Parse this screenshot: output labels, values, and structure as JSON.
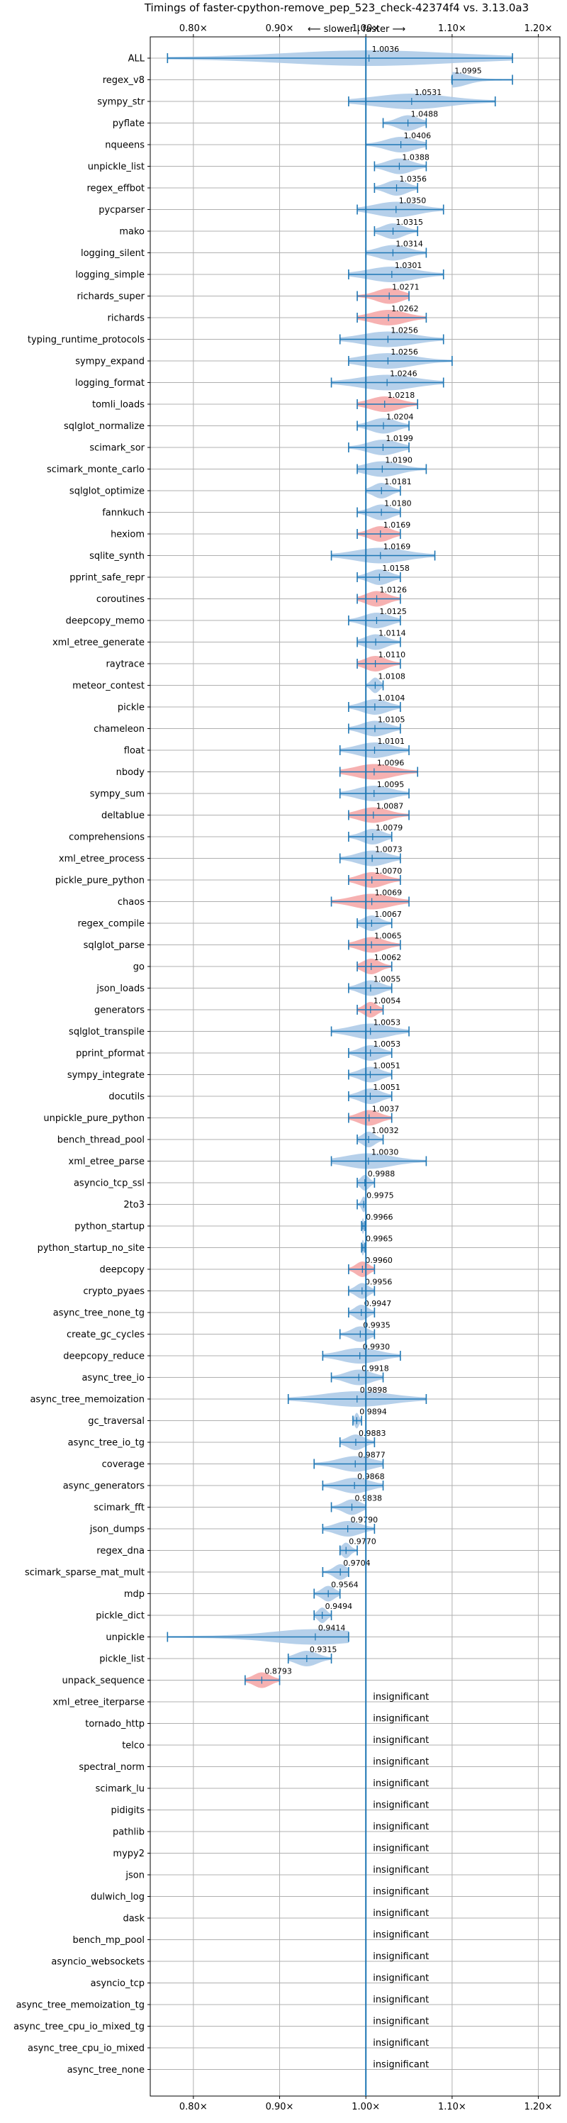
{
  "chart_data": {
    "type": "violin",
    "title": "Timings of faster-cpython-remove_pep_523_check-42374f4 vs. 3.13.0a3",
    "direction_label": "⟵ slower | faster ⟶",
    "xlim": [
      0.75,
      1.225
    ],
    "x_ticks": [
      0.8,
      0.9,
      1.0,
      1.1,
      1.2
    ],
    "x_tick_labels": [
      "0.80×",
      "0.90×",
      "1.00×",
      "1.10×",
      "1.20×"
    ],
    "reference_line": 1.0,
    "grid": true,
    "colors": {
      "faster": "#a9c8e6",
      "slower": "#f4a3a3",
      "line": "#1f77b4"
    },
    "insignificant_label": "insignificant",
    "benchmarks": [
      {
        "name": "ALL",
        "value": 1.0036,
        "label": "1.0036",
        "low": 0.77,
        "high": 1.17,
        "status": "faster"
      },
      {
        "name": "regex_v8",
        "value": 1.0995,
        "label": "1.0995",
        "low": 1.1,
        "high": 1.17,
        "status": "faster"
      },
      {
        "name": "sympy_str",
        "value": 1.0531,
        "label": "1.0531",
        "low": 0.98,
        "high": 1.15,
        "status": "faster"
      },
      {
        "name": "pyflate",
        "value": 1.0488,
        "label": "1.0488",
        "low": 1.02,
        "high": 1.07,
        "status": "faster"
      },
      {
        "name": "nqueens",
        "value": 1.0406,
        "label": "1.0406",
        "low": 1.0,
        "high": 1.07,
        "status": "faster"
      },
      {
        "name": "unpickle_list",
        "value": 1.0388,
        "label": "1.0388",
        "low": 1.01,
        "high": 1.07,
        "status": "faster"
      },
      {
        "name": "regex_effbot",
        "value": 1.0356,
        "label": "1.0356",
        "low": 1.01,
        "high": 1.06,
        "status": "faster"
      },
      {
        "name": "pycparser",
        "value": 1.035,
        "label": "1.0350",
        "low": 0.99,
        "high": 1.09,
        "status": "faster"
      },
      {
        "name": "mako",
        "value": 1.0315,
        "label": "1.0315",
        "low": 1.01,
        "high": 1.06,
        "status": "faster"
      },
      {
        "name": "logging_silent",
        "value": 1.0314,
        "label": "1.0314",
        "low": 1.0,
        "high": 1.07,
        "status": "faster"
      },
      {
        "name": "logging_simple",
        "value": 1.0301,
        "label": "1.0301",
        "low": 0.98,
        "high": 1.09,
        "status": "faster"
      },
      {
        "name": "richards_super",
        "value": 1.0271,
        "label": "1.0271",
        "low": 0.99,
        "high": 1.05,
        "status": "slower"
      },
      {
        "name": "richards",
        "value": 1.0262,
        "label": "1.0262",
        "low": 0.99,
        "high": 1.07,
        "status": "slower"
      },
      {
        "name": "typing_runtime_protocols",
        "value": 1.0256,
        "label": "1.0256",
        "low": 0.97,
        "high": 1.09,
        "status": "faster"
      },
      {
        "name": "sympy_expand",
        "value": 1.0256,
        "label": "1.0256",
        "low": 0.98,
        "high": 1.1,
        "status": "faster"
      },
      {
        "name": "logging_format",
        "value": 1.0246,
        "label": "1.0246",
        "low": 0.96,
        "high": 1.09,
        "status": "faster"
      },
      {
        "name": "tomli_loads",
        "value": 1.0218,
        "label": "1.0218",
        "low": 0.99,
        "high": 1.06,
        "status": "slower"
      },
      {
        "name": "sqlglot_normalize",
        "value": 1.0204,
        "label": "1.0204",
        "low": 0.99,
        "high": 1.05,
        "status": "faster"
      },
      {
        "name": "scimark_sor",
        "value": 1.0199,
        "label": "1.0199",
        "low": 0.98,
        "high": 1.05,
        "status": "faster"
      },
      {
        "name": "scimark_monte_carlo",
        "value": 1.019,
        "label": "1.0190",
        "low": 0.99,
        "high": 1.07,
        "status": "faster"
      },
      {
        "name": "sqlglot_optimize",
        "value": 1.0181,
        "label": "1.0181",
        "low": 1.0,
        "high": 1.04,
        "status": "faster"
      },
      {
        "name": "fannkuch",
        "value": 1.018,
        "label": "1.0180",
        "low": 0.99,
        "high": 1.04,
        "status": "faster"
      },
      {
        "name": "hexiom",
        "value": 1.0169,
        "label": "1.0169",
        "low": 0.99,
        "high": 1.04,
        "status": "slower"
      },
      {
        "name": "sqlite_synth",
        "value": 1.0169,
        "label": "1.0169",
        "low": 0.96,
        "high": 1.08,
        "status": "faster"
      },
      {
        "name": "pprint_safe_repr",
        "value": 1.0158,
        "label": "1.0158",
        "low": 0.99,
        "high": 1.04,
        "status": "faster"
      },
      {
        "name": "coroutines",
        "value": 1.0126,
        "label": "1.0126",
        "low": 0.99,
        "high": 1.04,
        "status": "slower"
      },
      {
        "name": "deepcopy_memo",
        "value": 1.0125,
        "label": "1.0125",
        "low": 0.98,
        "high": 1.04,
        "status": "faster"
      },
      {
        "name": "xml_etree_generate",
        "value": 1.0114,
        "label": "1.0114",
        "low": 0.99,
        "high": 1.04,
        "status": "faster"
      },
      {
        "name": "raytrace",
        "value": 1.011,
        "label": "1.0110",
        "low": 0.99,
        "high": 1.04,
        "status": "slower"
      },
      {
        "name": "meteor_contest",
        "value": 1.0108,
        "label": "1.0108",
        "low": 1.0,
        "high": 1.02,
        "status": "faster"
      },
      {
        "name": "pickle",
        "value": 1.0104,
        "label": "1.0104",
        "low": 0.98,
        "high": 1.04,
        "status": "faster"
      },
      {
        "name": "chameleon",
        "value": 1.0105,
        "label": "1.0105",
        "low": 0.98,
        "high": 1.04,
        "status": "faster"
      },
      {
        "name": "float",
        "value": 1.0101,
        "label": "1.0101",
        "low": 0.97,
        "high": 1.05,
        "status": "faster"
      },
      {
        "name": "nbody",
        "value": 1.0096,
        "label": "1.0096",
        "low": 0.97,
        "high": 1.06,
        "status": "slower"
      },
      {
        "name": "sympy_sum",
        "value": 1.0095,
        "label": "1.0095",
        "low": 0.97,
        "high": 1.05,
        "status": "faster"
      },
      {
        "name": "deltablue",
        "value": 1.0087,
        "label": "1.0087",
        "low": 0.98,
        "high": 1.05,
        "status": "slower"
      },
      {
        "name": "comprehensions",
        "value": 1.0079,
        "label": "1.0079",
        "low": 0.98,
        "high": 1.03,
        "status": "faster"
      },
      {
        "name": "xml_etree_process",
        "value": 1.0073,
        "label": "1.0073",
        "low": 0.97,
        "high": 1.04,
        "status": "faster"
      },
      {
        "name": "pickle_pure_python",
        "value": 1.007,
        "label": "1.0070",
        "low": 0.98,
        "high": 1.04,
        "status": "slower"
      },
      {
        "name": "chaos",
        "value": 1.0069,
        "label": "1.0069",
        "low": 0.96,
        "high": 1.05,
        "status": "slower"
      },
      {
        "name": "regex_compile",
        "value": 1.0067,
        "label": "1.0067",
        "low": 0.99,
        "high": 1.03,
        "status": "faster"
      },
      {
        "name": "sqlglot_parse",
        "value": 1.0065,
        "label": "1.0065",
        "low": 0.98,
        "high": 1.04,
        "status": "slower"
      },
      {
        "name": "go",
        "value": 1.0062,
        "label": "1.0062",
        "low": 0.99,
        "high": 1.03,
        "status": "slower"
      },
      {
        "name": "json_loads",
        "value": 1.0055,
        "label": "1.0055",
        "low": 0.98,
        "high": 1.03,
        "status": "faster"
      },
      {
        "name": "generators",
        "value": 1.0054,
        "label": "1.0054",
        "low": 0.99,
        "high": 1.02,
        "status": "slower"
      },
      {
        "name": "sqlglot_transpile",
        "value": 1.0053,
        "label": "1.0053",
        "low": 0.96,
        "high": 1.05,
        "status": "faster"
      },
      {
        "name": "pprint_pformat",
        "value": 1.0053,
        "label": "1.0053",
        "low": 0.98,
        "high": 1.03,
        "status": "faster"
      },
      {
        "name": "sympy_integrate",
        "value": 1.0051,
        "label": "1.0051",
        "low": 0.98,
        "high": 1.03,
        "status": "faster"
      },
      {
        "name": "docutils",
        "value": 1.0051,
        "label": "1.0051",
        "low": 0.98,
        "high": 1.03,
        "status": "faster"
      },
      {
        "name": "unpickle_pure_python",
        "value": 1.0037,
        "label": "1.0037",
        "low": 0.98,
        "high": 1.03,
        "status": "slower"
      },
      {
        "name": "bench_thread_pool",
        "value": 1.0032,
        "label": "1.0032",
        "low": 0.99,
        "high": 1.02,
        "status": "faster"
      },
      {
        "name": "xml_etree_parse",
        "value": 1.003,
        "label": "1.0030",
        "low": 0.96,
        "high": 1.07,
        "status": "faster"
      },
      {
        "name": "asyncio_tcp_ssl",
        "value": 0.9988,
        "label": "0.9988",
        "low": 0.99,
        "high": 1.01,
        "status": "faster"
      },
      {
        "name": "2to3",
        "value": 0.9975,
        "label": "0.9975",
        "low": 0.99,
        "high": 1.0,
        "status": "faster"
      },
      {
        "name": "python_startup",
        "value": 0.9966,
        "label": "0.9966",
        "low": 0.995,
        "high": 0.999,
        "status": "faster"
      },
      {
        "name": "python_startup_no_site",
        "value": 0.9965,
        "label": "0.9965",
        "low": 0.995,
        "high": 0.999,
        "status": "faster"
      },
      {
        "name": "deepcopy",
        "value": 0.996,
        "label": "0.9960",
        "low": 0.98,
        "high": 1.01,
        "status": "slower"
      },
      {
        "name": "crypto_pyaes",
        "value": 0.9956,
        "label": "0.9956",
        "low": 0.98,
        "high": 1.01,
        "status": "faster"
      },
      {
        "name": "async_tree_none_tg",
        "value": 0.9947,
        "label": "0.9947",
        "low": 0.98,
        "high": 1.01,
        "status": "faster"
      },
      {
        "name": "create_gc_cycles",
        "value": 0.9935,
        "label": "0.9935",
        "low": 0.97,
        "high": 1.01,
        "status": "faster"
      },
      {
        "name": "deepcopy_reduce",
        "value": 0.993,
        "label": "0.9930",
        "low": 0.95,
        "high": 1.04,
        "status": "faster"
      },
      {
        "name": "async_tree_io",
        "value": 0.9918,
        "label": "0.9918",
        "low": 0.96,
        "high": 1.02,
        "status": "faster"
      },
      {
        "name": "async_tree_memoization",
        "value": 0.9898,
        "label": "0.9898",
        "low": 0.91,
        "high": 1.07,
        "status": "faster"
      },
      {
        "name": "gc_traversal",
        "value": 0.9894,
        "label": "0.9894",
        "low": 0.985,
        "high": 0.995,
        "status": "faster"
      },
      {
        "name": "async_tree_io_tg",
        "value": 0.9883,
        "label": "0.9883",
        "low": 0.97,
        "high": 1.01,
        "status": "faster"
      },
      {
        "name": "coverage",
        "value": 0.9877,
        "label": "0.9877",
        "low": 0.94,
        "high": 1.02,
        "status": "faster"
      },
      {
        "name": "async_generators",
        "value": 0.9868,
        "label": "0.9868",
        "low": 0.95,
        "high": 1.02,
        "status": "faster"
      },
      {
        "name": "scimark_fft",
        "value": 0.9838,
        "label": "0.9838",
        "low": 0.96,
        "high": 1.0,
        "status": "faster"
      },
      {
        "name": "json_dumps",
        "value": 0.979,
        "label": "0.9790",
        "low": 0.95,
        "high": 1.01,
        "status": "faster"
      },
      {
        "name": "regex_dna",
        "value": 0.977,
        "label": "0.9770",
        "low": 0.97,
        "high": 0.99,
        "status": "faster"
      },
      {
        "name": "scimark_sparse_mat_mult",
        "value": 0.9704,
        "label": "0.9704",
        "low": 0.95,
        "high": 0.98,
        "status": "faster"
      },
      {
        "name": "mdp",
        "value": 0.9564,
        "label": "0.9564",
        "low": 0.94,
        "high": 0.97,
        "status": "faster"
      },
      {
        "name": "pickle_dict",
        "value": 0.9494,
        "label": "0.9494",
        "low": 0.94,
        "high": 0.96,
        "status": "faster"
      },
      {
        "name": "unpickle",
        "value": 0.9414,
        "label": "0.9414",
        "low": 0.77,
        "high": 0.98,
        "status": "faster"
      },
      {
        "name": "pickle_list",
        "value": 0.9315,
        "label": "0.9315",
        "low": 0.91,
        "high": 0.96,
        "status": "faster"
      },
      {
        "name": "unpack_sequence",
        "value": 0.8793,
        "label": "0.8793",
        "low": 0.86,
        "high": 0.9,
        "status": "slower"
      },
      {
        "name": "xml_etree_iterparse",
        "status": "insignificant"
      },
      {
        "name": "tornado_http",
        "status": "insignificant"
      },
      {
        "name": "telco",
        "status": "insignificant"
      },
      {
        "name": "spectral_norm",
        "status": "insignificant"
      },
      {
        "name": "scimark_lu",
        "status": "insignificant"
      },
      {
        "name": "pidigits",
        "status": "insignificant"
      },
      {
        "name": "pathlib",
        "status": "insignificant"
      },
      {
        "name": "mypy2",
        "status": "insignificant"
      },
      {
        "name": "json",
        "status": "insignificant"
      },
      {
        "name": "dulwich_log",
        "status": "insignificant"
      },
      {
        "name": "dask",
        "status": "insignificant"
      },
      {
        "name": "bench_mp_pool",
        "status": "insignificant"
      },
      {
        "name": "asyncio_websockets",
        "status": "insignificant"
      },
      {
        "name": "asyncio_tcp",
        "status": "insignificant"
      },
      {
        "name": "async_tree_memoization_tg",
        "status": "insignificant"
      },
      {
        "name": "async_tree_cpu_io_mixed_tg",
        "status": "insignificant"
      },
      {
        "name": "async_tree_cpu_io_mixed",
        "status": "insignificant"
      },
      {
        "name": "async_tree_none",
        "status": "insignificant"
      }
    ]
  }
}
